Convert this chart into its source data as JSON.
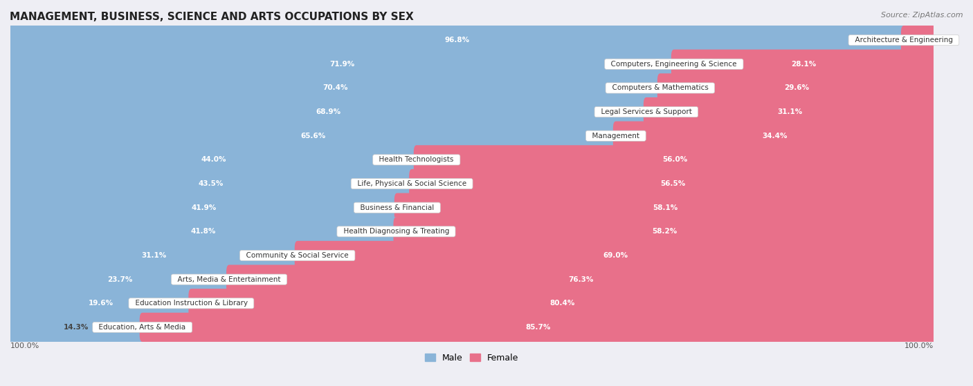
{
  "title": "MANAGEMENT, BUSINESS, SCIENCE AND ARTS OCCUPATIONS BY SEX",
  "source": "Source: ZipAtlas.com",
  "categories": [
    "Architecture & Engineering",
    "Computers, Engineering & Science",
    "Computers & Mathematics",
    "Legal Services & Support",
    "Management",
    "Health Technologists",
    "Life, Physical & Social Science",
    "Business & Financial",
    "Health Diagnosing & Treating",
    "Community & Social Service",
    "Arts, Media & Entertainment",
    "Education Instruction & Library",
    "Education, Arts & Media"
  ],
  "male": [
    96.8,
    71.9,
    70.4,
    68.9,
    65.6,
    44.0,
    43.5,
    41.9,
    41.8,
    31.1,
    23.7,
    19.6,
    14.3
  ],
  "female": [
    3.2,
    28.1,
    29.6,
    31.1,
    34.4,
    56.0,
    56.5,
    58.1,
    58.2,
    69.0,
    76.3,
    80.4,
    85.7
  ],
  "male_color": "#8ab4d8",
  "female_color": "#e8708a",
  "background_color": "#eeeef4",
  "row_bg_even": "#f5f5f8",
  "row_bg_odd": "#ebebf0",
  "bar_height": 0.62,
  "figsize": [
    14.06,
    5.59
  ],
  "dpi": 100
}
